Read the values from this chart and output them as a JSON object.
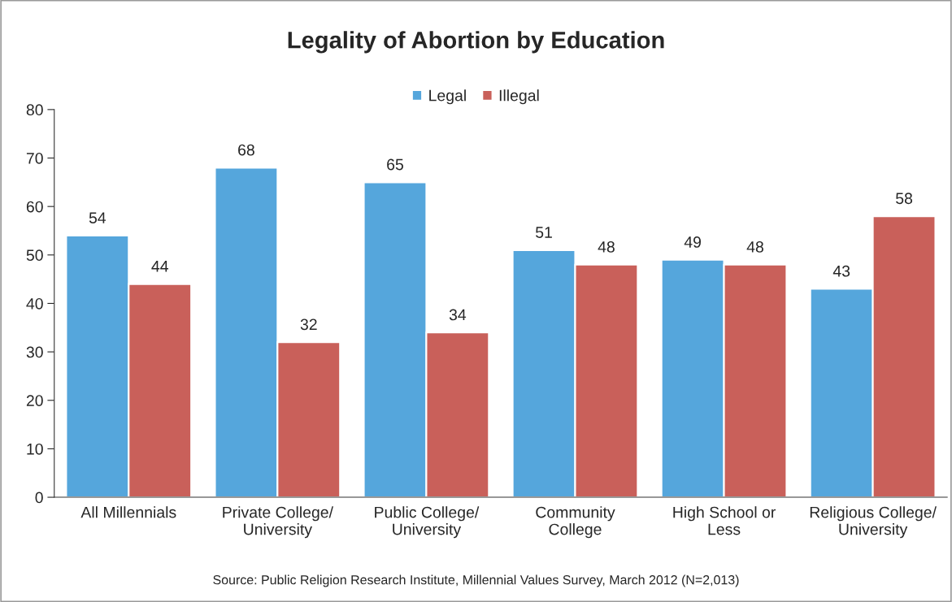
{
  "chart_data": {
    "type": "bar",
    "title": "Legality of Abortion by Education",
    "categories": [
      "All Millennials",
      "Private College/\nUniversity",
      "Public College/\nUniversity",
      "Community\nCollege",
      "High School or\nLess",
      "Religious College/\nUniversity"
    ],
    "series": [
      {
        "name": "Legal",
        "color": "#55a6dc",
        "values": [
          54,
          68,
          65,
          51,
          49,
          43
        ]
      },
      {
        "name": "Illegal",
        "color": "#c9605a",
        "values": [
          44,
          32,
          34,
          48,
          48,
          58
        ]
      }
    ],
    "ylim": [
      0,
      80
    ],
    "yticks": [
      0,
      10,
      20,
      30,
      40,
      50,
      60,
      70,
      80
    ],
    "grid": false,
    "legend": "top",
    "data_labels": true,
    "annotations": [
      "Source: Public Religion Research Institute, Millennial Values Survey, March 2012 (N=2,013)"
    ]
  }
}
